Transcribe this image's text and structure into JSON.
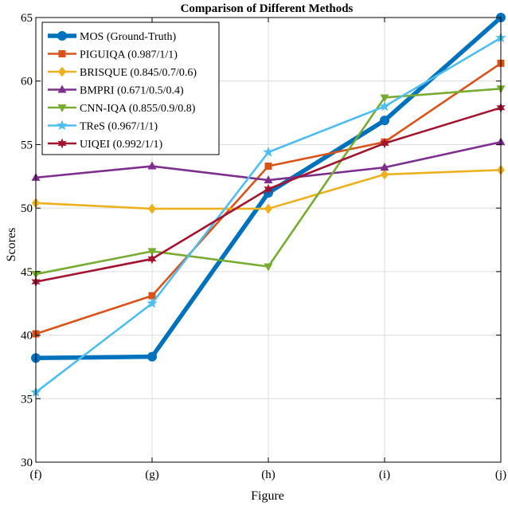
{
  "chart_data": {
    "type": "line",
    "title": "Comparison of Different Methods",
    "xlabel": "Figure",
    "ylabel": "Scores",
    "categories": [
      "(f)",
      "(g)",
      "(h)",
      "(i)",
      "(j)"
    ],
    "ylim": [
      30,
      65
    ],
    "yticks": [
      30,
      35,
      40,
      45,
      50,
      55,
      60,
      65
    ],
    "grid": true,
    "legend_position": "top-left",
    "series": [
      {
        "name": "MOS (Ground-Truth)",
        "values": [
          38.2,
          38.3,
          51.2,
          56.9,
          65.0
        ],
        "color": "#0072BD",
        "marker": "circle",
        "thick": true
      },
      {
        "name": "PIGUIQA (0.987/1/1)",
        "values": [
          40.1,
          43.1,
          53.3,
          55.2,
          61.4
        ],
        "color": "#D95319",
        "marker": "square",
        "thick": false
      },
      {
        "name": "BRISQUE (0.845/0.7/0.6)",
        "values": [
          50.4,
          49.95,
          49.95,
          52.65,
          53.0
        ],
        "color": "#EDB120",
        "marker": "diamond",
        "thick": false
      },
      {
        "name": "BMPRI (0.671/0.5/0.4)",
        "values": [
          52.4,
          53.3,
          52.2,
          53.2,
          55.2
        ],
        "color": "#7E2F8E",
        "marker": "triangle-up",
        "thick": false
      },
      {
        "name": "CNN-IQA (0.855/0.9/0.8)",
        "values": [
          44.8,
          46.6,
          45.4,
          58.7,
          59.4
        ],
        "color": "#77AC30",
        "marker": "triangle-down",
        "thick": false
      },
      {
        "name": "TReS (0.967/1/1)",
        "values": [
          35.5,
          42.5,
          54.4,
          58.0,
          63.4
        ],
        "color": "#4DBEEE",
        "marker": "star5",
        "thick": false
      },
      {
        "name": "UIQEI (0.992/1/1)",
        "values": [
          44.2,
          46.0,
          51.5,
          55.1,
          57.9
        ],
        "color": "#A2142F",
        "marker": "star6",
        "thick": false
      }
    ]
  }
}
